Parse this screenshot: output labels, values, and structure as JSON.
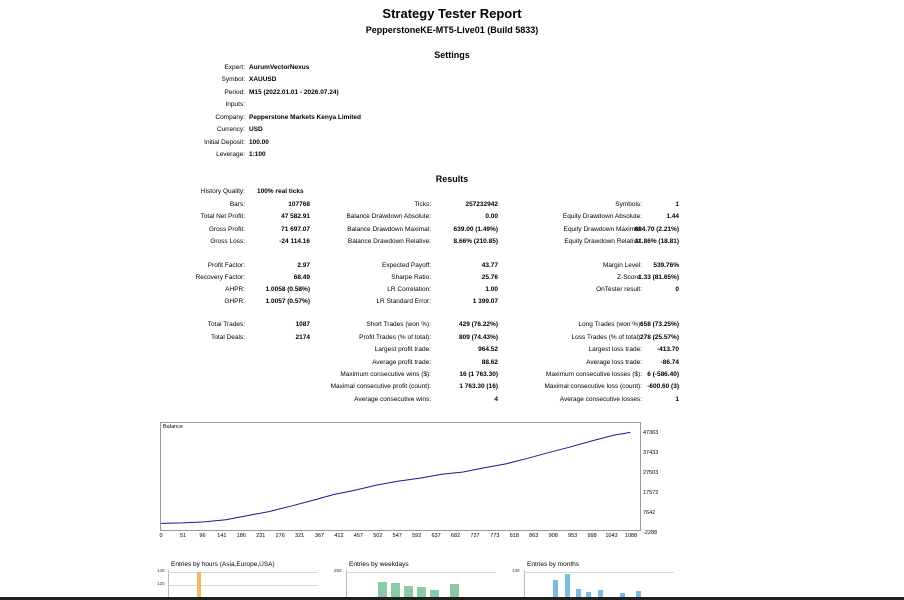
{
  "report": {
    "title": "Strategy Tester Report",
    "subtitle": "PepperstoneKE-MT5-Live01 (Build 5833)",
    "settings_heading": "Settings",
    "results_heading": "Results"
  },
  "settings": [
    {
      "label": "Expert:",
      "value": "AurumVectorNexus"
    },
    {
      "label": "Symbol:",
      "value": "XAUUSD"
    },
    {
      "label": "Period:",
      "value": "M15 (2022.01.01 - 2026.07.24)"
    },
    {
      "label": "Inputs:",
      "value": ""
    },
    {
      "label": "Company:",
      "value": "Pepperstone Markets Kenya Limited"
    },
    {
      "label": "Currency:",
      "value": "USD"
    },
    {
      "label": "Initial Deposit:",
      "value": "100.00"
    },
    {
      "label": "Leverage:",
      "value": "1:100"
    }
  ],
  "results": {
    "history_quality": {
      "label": "History Quality:",
      "value": "100% real ticks"
    },
    "bars": {
      "label": "Bars:",
      "value": "107768"
    },
    "ticks": {
      "label": "Ticks:",
      "value": "257232942"
    },
    "symbols": {
      "label": "Symbols:",
      "value": "1"
    },
    "total_net_profit": {
      "label": "Total Net Profit:",
      "value": "47 582.91"
    },
    "balance_dd_abs": {
      "label": "Balance Drawdown Absolute:",
      "value": "0.00"
    },
    "equity_dd_abs": {
      "label": "Equity Drawdown Absolute:",
      "value": "1.44"
    },
    "gross_profit": {
      "label": "Gross Profit:",
      "value": "71 697.07"
    },
    "balance_dd_max": {
      "label": "Balance Drawdown Maximal:",
      "value": "639.00 (1.49%)"
    },
    "equity_dd_max": {
      "label": "Equity Drawdown Maximal:",
      "value": "694.70 (2.21%)"
    },
    "gross_loss": {
      "label": "Gross Loss:",
      "value": "-24 114.16"
    },
    "balance_dd_rel": {
      "label": "Balance Drawdown Relative:",
      "value": "8.66% (210.85)"
    },
    "equity_dd_rel": {
      "label": "Equity Drawdown Relative:",
      "value": "11.86% (18.81)"
    },
    "profit_factor": {
      "label": "Profit Factor:",
      "value": "2.97"
    },
    "expected_payoff": {
      "label": "Expected Payoff:",
      "value": "43.77"
    },
    "margin_level": {
      "label": "Margin Level:",
      "value": "539.76%"
    },
    "recovery_factor": {
      "label": "Recovery Factor:",
      "value": "68.49"
    },
    "sharpe_ratio": {
      "label": "Sharpe Ratio:",
      "value": "25.76"
    },
    "z_score": {
      "label": "Z-Score:",
      "value": "1.33 (81.65%)"
    },
    "ahpr": {
      "label": "AHPR:",
      "value": "1.0058 (0.58%)"
    },
    "lr_correlation": {
      "label": "LR Correlation:",
      "value": "1.00"
    },
    "ontester": {
      "label": "OnTester result:",
      "value": "0"
    },
    "ghpr": {
      "label": "GHPR:",
      "value": "1.0057 (0.57%)"
    },
    "lr_std_error": {
      "label": "LR Standard Error:",
      "value": "1 399.07"
    },
    "total_trades": {
      "label": "Total Trades:",
      "value": "1087"
    },
    "short_trades": {
      "label": "Short Trades (won %):",
      "value": "429 (76.22%)"
    },
    "long_trades": {
      "label": "Long Trades (won %):",
      "value": "658 (73.25%)"
    },
    "total_deals": {
      "label": "Total Deals:",
      "value": "2174"
    },
    "profit_trades": {
      "label": "Profit Trades (% of total):",
      "value": "809 (74.43%)"
    },
    "loss_trades": {
      "label": "Loss Trades (% of total):",
      "value": "278 (25.57%)"
    },
    "largest_profit": {
      "label": "Largest profit trade:",
      "value": "964.52"
    },
    "largest_loss": {
      "label": "Largest loss trade:",
      "value": "-413.70"
    },
    "avg_profit": {
      "label": "Average profit trade:",
      "value": "88.62"
    },
    "avg_loss": {
      "label": "Average loss trade:",
      "value": "-86.74"
    },
    "max_consec_wins": {
      "label": "Maximum consecutive wins ($):",
      "value": "16 (1 763.30)"
    },
    "max_consec_losses": {
      "label": "Maximum consecutive losses ($):",
      "value": "6 (-586.40)"
    },
    "maximal_consec_profit": {
      "label": "Maximal consecutive profit (count):",
      "value": "1 763.30 (16)"
    },
    "maximal_consec_loss": {
      "label": "Maximal consecutive loss (count):",
      "value": "-600.60 (3)"
    },
    "avg_consec_wins": {
      "label": "Average consecutive wins:",
      "value": "4"
    },
    "avg_consec_losses": {
      "label": "Average consecutive losses:",
      "value": "1"
    }
  },
  "chart_data": [
    {
      "type": "line",
      "title": "Balance",
      "color": "#1a1a8c",
      "y_ticks": [
        "47363",
        "37433",
        "27503",
        "17572",
        "7642",
        "-2288"
      ],
      "x_ticks": [
        "0",
        "51",
        "96",
        "141",
        "186",
        "231",
        "276",
        "321",
        "367",
        "412",
        "457",
        "502",
        "547",
        "592",
        "637",
        "682",
        "727",
        "773",
        "818",
        "863",
        "908",
        "953",
        "998",
        "1043",
        "1088"
      ],
      "ylim": [
        -2288,
        47363
      ],
      "xlim": [
        0,
        1109
      ],
      "x": [
        0,
        50,
        100,
        150,
        200,
        250,
        300,
        350,
        400,
        450,
        500,
        550,
        600,
        650,
        700,
        750,
        800,
        850,
        900,
        950,
        1000,
        1050,
        1087
      ],
      "values": [
        100,
        400,
        900,
        2000,
        4200,
        6300,
        9100,
        12100,
        15200,
        17500,
        20200,
        22200,
        23800,
        25800,
        27000,
        29300,
        31300,
        34200,
        37300,
        40200,
        43400,
        46300,
        47683
      ]
    },
    {
      "type": "bar",
      "title": "Entries by hours (Asia,Europe,USA)",
      "y_ticks": [
        "140",
        "120"
      ],
      "color": "#f4b860"
    },
    {
      "type": "bar",
      "title": "Entries by weekdays",
      "y_ticks": [
        "250"
      ],
      "color": "#8cc9a6"
    },
    {
      "type": "bar",
      "title": "Entries by months",
      "y_ticks": [
        "130"
      ],
      "color": "#7bbbe0"
    }
  ]
}
